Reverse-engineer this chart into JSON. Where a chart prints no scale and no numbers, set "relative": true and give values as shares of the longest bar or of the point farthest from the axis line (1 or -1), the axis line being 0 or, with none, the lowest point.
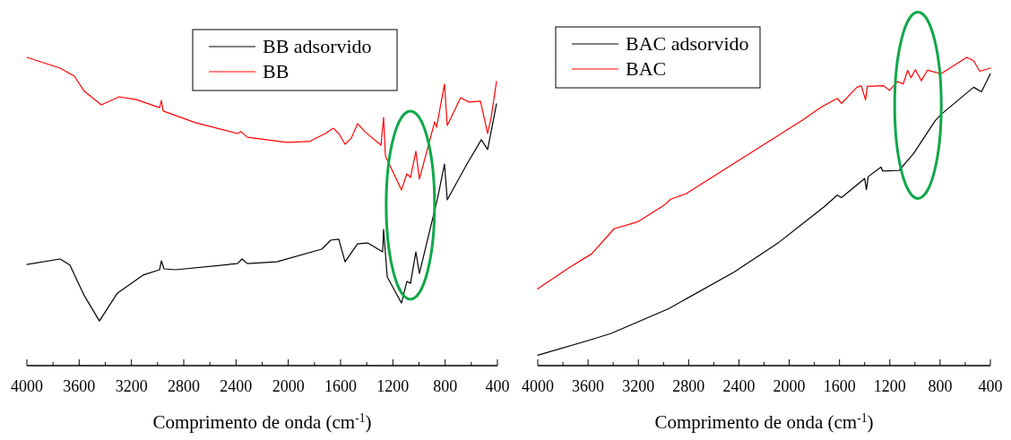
{
  "chart_data": [
    {
      "type": "line",
      "relative": true,
      "xlabel": "Comprimento de onda (cm$^{-1}$)",
      "legend": "top",
      "marker": "none",
      "line_style": "solid",
      "grid": false,
      "xlim": [
        4000,
        400
      ],
      "xticks": [
        4000,
        {
          "value": 3800,
          "label": null
        },
        3600,
        {
          "value": 3400,
          "label": null
        },
        3200,
        {
          "value": 3000,
          "label": null
        },
        2800,
        {
          "value": 2600,
          "label": null
        },
        2400,
        {
          "value": 2200,
          "label": null
        },
        2000,
        {
          "value": 1800,
          "label": null
        },
        1600,
        {
          "value": 1400,
          "label": null
        },
        1200,
        {
          "value": 1000,
          "label": null
        },
        800,
        {
          "value": 600,
          "label": null
        },
        400
      ],
      "series": [
        {
          "name": "BB adsorvido",
          "color": "#000000",
          "x": [
            4000,
            3746,
            3671,
            3561,
            3445,
            3308,
            3109,
            2985,
            2971,
            2951,
            2862,
            2389,
            2354,
            2313,
            2087,
            1744,
            1675,
            1614,
            1566,
            1470,
            1394,
            1278,
            1271,
            1243,
            1134,
            1093,
            1065,
            1024,
            997,
            894,
            859,
            805,
            784,
            633,
            523,
            475,
            407
          ],
          "values": [
            0.328,
            0.346,
            0.326,
            0.227,
            0.145,
            0.235,
            0.294,
            0.311,
            0.34,
            0.314,
            0.311,
            0.331,
            0.346,
            0.331,
            0.337,
            0.378,
            0.407,
            0.41,
            0.337,
            0.395,
            0.398,
            0.369,
            0.442,
            0.288,
            0.203,
            0.273,
            0.267,
            0.369,
            0.299,
            0.48,
            0.541,
            0.654,
            0.538,
            0.654,
            0.733,
            0.701,
            0.849
          ]
        },
        {
          "name": "BB",
          "color": "#ff0000",
          "x": [
            4000,
            3746,
            3637,
            3561,
            3431,
            3294,
            3163,
            2985,
            2971,
            2957,
            2711,
            2389,
            2361,
            2313,
            2011,
            1840,
            1717,
            1655,
            1614,
            1566,
            1518,
            1470,
            1415,
            1291,
            1271,
            1257,
            1134,
            1093,
            1065,
            1024,
            997,
            880,
            866,
            805,
            784,
            681,
            619,
            530,
            475,
            448,
            407
          ],
          "values": [
            1.0,
            0.965,
            0.939,
            0.89,
            0.846,
            0.872,
            0.863,
            0.837,
            0.86,
            0.826,
            0.788,
            0.753,
            0.759,
            0.741,
            0.724,
            0.727,
            0.753,
            0.77,
            0.753,
            0.718,
            0.738,
            0.785,
            0.759,
            0.715,
            0.805,
            0.68,
            0.57,
            0.622,
            0.61,
            0.695,
            0.605,
            0.791,
            0.773,
            0.913,
            0.779,
            0.869,
            0.855,
            0.858,
            0.753,
            0.805,
            0.922
          ]
        }
      ]
    },
    {
      "type": "line",
      "relative": true,
      "xlabel": "Comprimento de onda (cm$^{-1}$)",
      "legend": "top left",
      "marker": "none",
      "line_style": "solid",
      "grid": false,
      "xlim": [
        4000,
        400
      ],
      "xticks": [
        4000,
        {
          "value": 3800,
          "label": null
        },
        3600,
        {
          "value": 3400,
          "label": null
        },
        3200,
        {
          "value": 3000,
          "label": null
        },
        2800,
        {
          "value": 2600,
          "label": null
        },
        2400,
        {
          "value": 2200,
          "label": null
        },
        2000,
        {
          "value": 1800,
          "label": null
        },
        1600,
        {
          "value": 1400,
          "label": null
        },
        1200,
        {
          "value": 1000,
          "label": null
        },
        800,
        {
          "value": 600,
          "label": null
        },
        400
      ],
      "series": [
        {
          "name": "BAC adsorvido",
          "color": "#000000",
          "x": [
            4000,
            3611,
            3420,
            2963,
            2437,
            2082,
            1720,
            1618,
            1584,
            1400,
            1386,
            1372,
            1270,
            1256,
            1127,
            1011,
            840,
            792,
            533,
            471,
            400
          ],
          "values": [
            0.034,
            0.08,
            0.104,
            0.184,
            0.304,
            0.4,
            0.516,
            0.553,
            0.545,
            0.607,
            0.571,
            0.613,
            0.644,
            0.631,
            0.633,
            0.688,
            0.794,
            0.815,
            0.903,
            0.888,
            0.947
          ]
        },
        {
          "name": "BAC",
          "color": "#ff0000",
          "x": [
            4000,
            3754,
            3570,
            3393,
            3201,
            2990,
            2942,
            2819,
            1891,
            1748,
            1618,
            1584,
            1461,
            1427,
            1393,
            1379,
            1250,
            1202,
            1140,
            1093,
            1058,
            1031,
            997,
            949,
            901,
            792,
            588,
            533,
            485,
            400
          ],
          "values": [
            0.249,
            0.317,
            0.363,
            0.444,
            0.467,
            0.522,
            0.54,
            0.558,
            0.797,
            0.838,
            0.867,
            0.851,
            0.903,
            0.908,
            0.862,
            0.906,
            0.908,
            0.893,
            0.921,
            0.914,
            0.958,
            0.934,
            0.96,
            0.924,
            0.958,
            0.947,
            1.0,
            0.989,
            0.955,
            0.965
          ]
        }
      ]
    }
  ]
}
